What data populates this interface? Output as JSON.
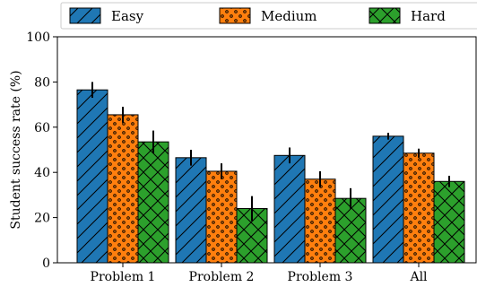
{
  "chart_data": {
    "type": "bar",
    "categories": [
      "Problem 1",
      "Problem 2",
      "Problem 3",
      "All"
    ],
    "series": [
      {
        "name": "Easy",
        "values": [
          76.5,
          46.5,
          47.5,
          56.0
        ],
        "errors": [
          3.5,
          3.5,
          3.5,
          1.5
        ],
        "color": "#1f77b4",
        "hatch": "diagonal"
      },
      {
        "name": "Medium",
        "values": [
          65.5,
          40.5,
          37.0,
          48.5
        ],
        "errors": [
          3.5,
          3.5,
          3.5,
          2.0
        ],
        "color": "#ff7f0e",
        "hatch": "dots"
      },
      {
        "name": "Hard",
        "values": [
          53.5,
          24.0,
          28.5,
          36.0
        ],
        "errors": [
          5.0,
          5.5,
          4.5,
          2.5
        ],
        "color": "#2ca02c",
        "hatch": "crosshatch"
      }
    ],
    "xlabel": "",
    "ylabel": "Student success rate (%)",
    "ylim": [
      0,
      100
    ],
    "yticks": [
      0,
      20,
      40,
      60,
      80,
      100
    ],
    "grid": false,
    "legend_position": "top"
  }
}
